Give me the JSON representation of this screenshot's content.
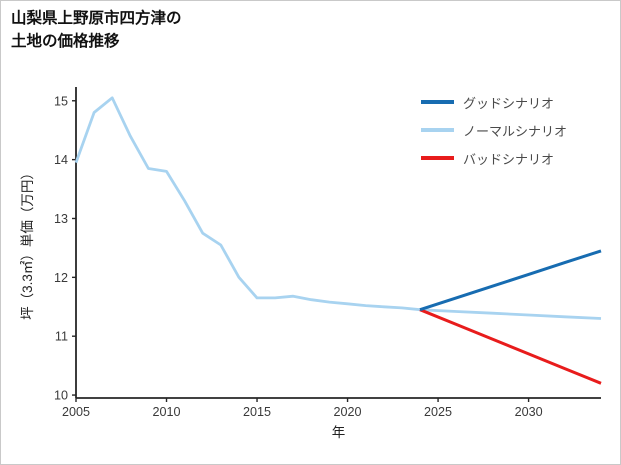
{
  "title": {
    "line1": "山梨県上野原市四方津の",
    "line2": "土地の価格推移"
  },
  "chart_data": {
    "type": "line",
    "title": "山梨県上野原市四方津の土地の価格推移",
    "xlabel": "年",
    "ylabel": "坪（3.3㎡）単価（万円）",
    "xlim": [
      2005,
      2034
    ],
    "ylim": [
      9.95,
      15.2
    ],
    "x_ticks": [
      2005,
      2010,
      2015,
      2020,
      2025,
      2030
    ],
    "y_ticks": [
      10,
      11,
      12,
      13,
      14,
      15
    ],
    "grid": false,
    "legend_position": "upper right",
    "draw_order": [
      1,
      2,
      0
    ],
    "series": [
      {
        "name": "グッドシナリオ",
        "color": "#176cb1",
        "line_width": 3,
        "x": [
          2024,
          2026,
          2028,
          2030,
          2032,
          2034
        ],
        "y": [
          11.45,
          11.65,
          11.85,
          12.05,
          12.25,
          12.45
        ]
      },
      {
        "name": "ノーマルシナリオ",
        "color": "#a8d3f0",
        "line_width": 2.8,
        "x": [
          2005,
          2006,
          2007,
          2008,
          2009,
          2010,
          2011,
          2012,
          2013,
          2014,
          2015,
          2016,
          2017,
          2018,
          2019,
          2020,
          2021,
          2022,
          2023,
          2024,
          2026,
          2028,
          2030,
          2032,
          2034
        ],
        "y": [
          13.95,
          14.8,
          15.05,
          14.4,
          13.85,
          13.8,
          13.3,
          12.75,
          12.55,
          12.0,
          11.65,
          11.65,
          11.68,
          11.62,
          11.58,
          11.55,
          11.52,
          11.5,
          11.48,
          11.45,
          11.42,
          11.39,
          11.36,
          11.33,
          11.3
        ]
      },
      {
        "name": "バッドシナリオ",
        "color": "#e81c1c",
        "line_width": 3,
        "x": [
          2024,
          2026,
          2028,
          2030,
          2032,
          2034
        ],
        "y": [
          11.45,
          11.2,
          10.95,
          10.7,
          10.45,
          10.2
        ]
      }
    ]
  }
}
